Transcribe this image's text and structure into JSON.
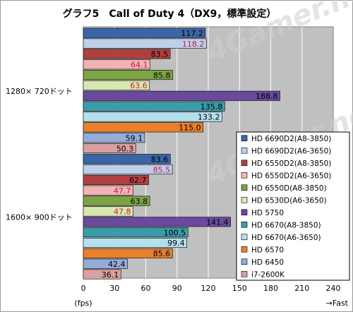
{
  "chart_data": {
    "type": "bar",
    "orientation": "horizontal",
    "title": "グラフ5　Call of Duty 4（DX9，標準設定）",
    "categories": [
      "1280× 720ドット",
      "1600× 900ドット"
    ],
    "series": [
      {
        "name": "HD 6690D2(A8-3850)",
        "values": [
          117.2,
          83.6
        ],
        "color": "#3a66a8",
        "label_color": "#000000"
      },
      {
        "name": "HD 6690D2(A6-3650)",
        "values": [
          118.2,
          85.5
        ],
        "color": "#bcd0ec",
        "label_color": "#d8143c"
      },
      {
        "name": "HD 6550D2(A8-3850)",
        "values": [
          83.5,
          62.7
        ],
        "color": "#b04040",
        "label_color": "#000000"
      },
      {
        "name": "HD 6550D2(A6-3650)",
        "values": [
          64.1,
          47.7
        ],
        "color": "#f0b4b4",
        "label_color": "#d8143c"
      },
      {
        "name": "HD 6550D(A8-3850)",
        "values": [
          85.8,
          63.8
        ],
        "color": "#7da444",
        "label_color": "#000000"
      },
      {
        "name": "HD 6530D(A6-3650)",
        "values": [
          63.6,
          47.8
        ],
        "color": "#d8e8b0",
        "label_color": "#d8143c"
      },
      {
        "name": "HD 5750",
        "values": [
          188.8,
          141.4
        ],
        "color": "#6a4a9c",
        "label_color": "#000000"
      },
      {
        "name": "HD 6670(A8-3850)",
        "values": [
          135.8,
          100.5
        ],
        "color": "#3a9ca8",
        "label_color": "#000000"
      },
      {
        "name": "HD 6670(A6-3650)",
        "values": [
          133.2,
          99.4
        ],
        "color": "#b4e0ec",
        "label_color": "#000000"
      },
      {
        "name": "HD 6570",
        "values": [
          115.0,
          85.6
        ],
        "color": "#e8802c",
        "label_color": "#000000"
      },
      {
        "name": "HD 6450",
        "values": [
          59.1,
          42.4
        ],
        "color": "#94acd8",
        "label_color": "#000000"
      },
      {
        "name": "i7-2600K",
        "values": [
          50.3,
          36.1
        ],
        "color": "#d8a0a0",
        "label_color": "#000000"
      }
    ],
    "xlim": [
      0,
      240
    ],
    "xticks": [
      0,
      30,
      60,
      90,
      120,
      150,
      180,
      210,
      240
    ],
    "xlabel": "(fps)",
    "direction_label": "→Fast",
    "watermark": "4Gamer.net",
    "grid": true,
    "legend_position": "right",
    "plot_background": "#c0c0c0"
  }
}
